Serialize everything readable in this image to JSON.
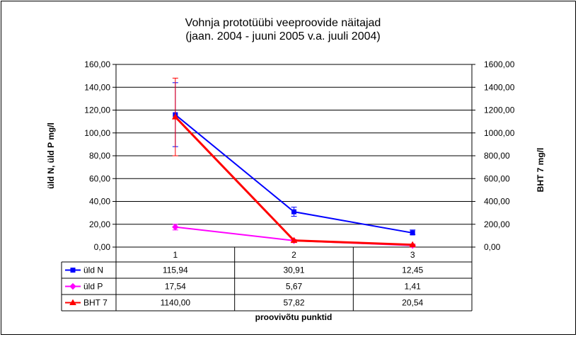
{
  "chart_data": {
    "type": "line",
    "title": "Vohnja prototüübi veeproovide näitajad",
    "subtitle": "(jaan. 2004 - juuni 2005 v.a. juuli 2004)",
    "xlabel": "proovivõtu punktid",
    "ylabel": "üld N, üld P  mg/l",
    "y2label": "BHT 7  mg/l",
    "categories": [
      "1",
      "2",
      "3"
    ],
    "ylim": [
      0,
      160
    ],
    "y2lim": [
      0,
      1600
    ],
    "yticks": [
      "0,00",
      "20,00",
      "40,00",
      "60,00",
      "80,00",
      "100,00",
      "120,00",
      "140,00",
      "160,00"
    ],
    "y2ticks": [
      "0,00",
      "200,00",
      "400,00",
      "600,00",
      "800,00",
      "1000,00",
      "1200,00",
      "1400,00",
      "1600,00"
    ],
    "grid": true,
    "legend": "data-table",
    "series": [
      {
        "name": "üld N",
        "axis": "left",
        "color": "#0000ff",
        "marker": "square",
        "values": [
          115.94,
          30.91,
          12.45
        ],
        "labels": [
          "115,94",
          "30,91",
          "12,45"
        ],
        "error_low": [
          88,
          27,
          11
        ],
        "error_high": [
          144,
          35,
          15
        ]
      },
      {
        "name": "üld P",
        "axis": "left",
        "color": "#ff00ff",
        "marker": "diamond",
        "values": [
          17.54,
          5.67,
          1.41
        ],
        "labels": [
          "17,54",
          "5,67",
          "1,41"
        ],
        "error_low": [
          15,
          5,
          1
        ],
        "error_high": [
          20,
          6.5,
          2
        ]
      },
      {
        "name": "BHT 7",
        "axis": "right",
        "color": "#ff0000",
        "marker": "triangle",
        "values": [
          1140.0,
          57.82,
          20.54
        ],
        "labels": [
          "1140,00",
          "57,82",
          "20,54"
        ],
        "error_low": [
          800,
          50,
          15
        ],
        "error_high": [
          1480,
          65,
          26
        ]
      }
    ]
  }
}
